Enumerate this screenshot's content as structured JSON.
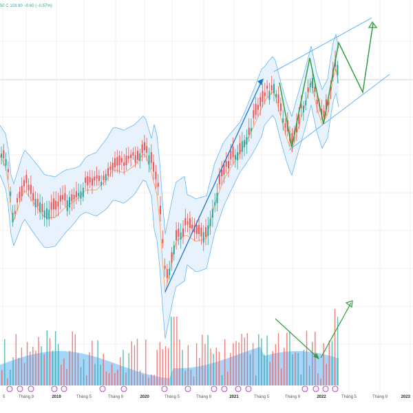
{
  "ohlc_readout": "50  C 103.90  −0.60 (−0.57%)",
  "colors": {
    "up": "#26a69a",
    "down": "#ef5350",
    "band_fill": "#e3f0fb",
    "band_line": "#64b5f6",
    "ma_line": "#f5a25d",
    "trend_blue": "#1976d2",
    "zigzag_green": "#2e9e3e",
    "volume_area": "#90caf9",
    "event_marker": "#9c27b0"
  },
  "x_axis_labels": [
    "5",
    "Tháng 9",
    "2019",
    "Tháng 5",
    "Tháng 9",
    "2020",
    "Tháng 5",
    "Tháng 9",
    "2021",
    "Tháng 5",
    "Tháng 9",
    "2022",
    "Tháng 5",
    "Tháng 9",
    "2023"
  ],
  "chart_data": {
    "type": "candlestick",
    "overlays": [
      "bollinger-bands",
      "moving-average",
      "trend-channel",
      "zigzag-projection",
      "volume"
    ],
    "x": [
      "5",
      "Tháng 9",
      "2019",
      "Tháng 5",
      "Tháng 9",
      "2020",
      "Tháng 5",
      "Tháng 9",
      "2021",
      "Tháng 5",
      "Tháng 9",
      "2022",
      "Tháng 5",
      "Tháng 9",
      "2023"
    ],
    "price_path": [
      [
        0,
        220
      ],
      [
        10,
        240
      ],
      [
        18,
        320
      ],
      [
        25,
        300
      ],
      [
        35,
        270
      ],
      [
        50,
        290
      ],
      [
        65,
        310
      ],
      [
        80,
        310
      ],
      [
        95,
        295
      ],
      [
        110,
        285
      ],
      [
        125,
        270
      ],
      [
        140,
        270
      ],
      [
        155,
        255
      ],
      [
        165,
        240
      ],
      [
        180,
        245
      ],
      [
        195,
        235
      ],
      [
        210,
        215
      ],
      [
        220,
        245
      ],
      [
        230,
        285
      ],
      [
        235,
        360
      ],
      [
        240,
        420
      ],
      [
        255,
        345
      ],
      [
        270,
        335
      ],
      [
        285,
        345
      ],
      [
        300,
        340
      ],
      [
        312,
        290
      ],
      [
        325,
        255
      ],
      [
        340,
        230
      ],
      [
        355,
        205
      ],
      [
        370,
        175
      ],
      [
        385,
        140
      ],
      [
        398,
        125
      ],
      [
        408,
        165
      ],
      [
        418,
        200
      ],
      [
        424,
        214
      ],
      [
        432,
        185
      ],
      [
        445,
        140
      ],
      [
        452,
        112
      ],
      [
        460,
        150
      ],
      [
        468,
        175
      ],
      [
        476,
        160
      ],
      [
        483,
        110
      ],
      [
        488,
        95
      ],
      [
        492,
        115
      ]
    ],
    "volume_bars": 120,
    "legend": "none",
    "grid": true
  }
}
